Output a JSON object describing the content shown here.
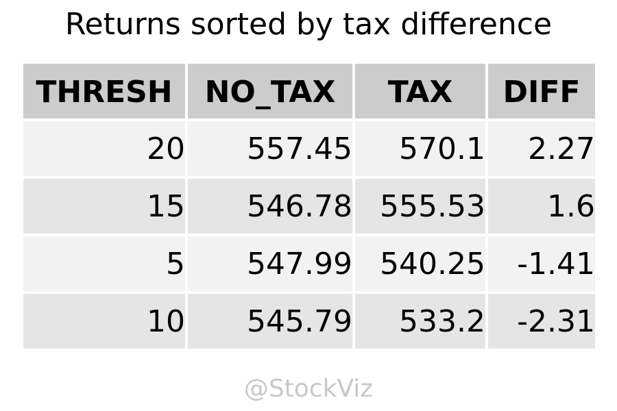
{
  "title": "Returns sorted by tax difference",
  "watermark": "@StockViz",
  "colors": {
    "header_bg": "#cccccc",
    "row_odd_bg": "#f2f2f2",
    "row_even_bg": "#e5e5e5",
    "watermark": "#c8c8c8"
  },
  "chart_data": {
    "type": "table",
    "title": "Returns sorted by tax difference",
    "columns": [
      "THRESH",
      "NO_TAX",
      "TAX",
      "DIFF"
    ],
    "rows": [
      [
        "20",
        "557.45",
        "570.1",
        "2.27"
      ],
      [
        "15",
        "546.78",
        "555.53",
        "1.6"
      ],
      [
        "5",
        "547.99",
        "540.25",
        "-1.41"
      ],
      [
        "10",
        "545.79",
        "533.2",
        "-2.31"
      ]
    ]
  }
}
